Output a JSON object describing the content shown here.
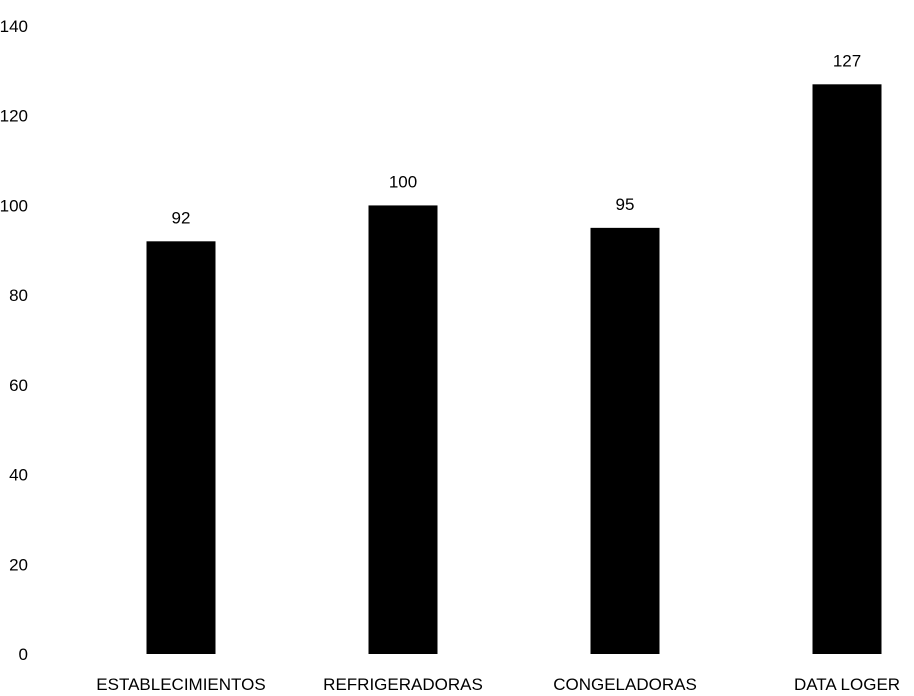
{
  "chart_data": {
    "type": "bar",
    "title": "",
    "xlabel": "",
    "ylabel": "",
    "categories": [
      "ESTABLECIMIENTOS",
      "REFRIGERADORAS",
      "CONGELADORAS",
      "DATA LOGER"
    ],
    "values": [
      92,
      100,
      95,
      127
    ],
    "value_labels": [
      "92",
      "100",
      "95",
      "127"
    ],
    "ylim": [
      0,
      140
    ],
    "yticks": [
      0,
      20,
      40,
      60,
      80,
      100,
      120,
      140
    ],
    "ytick_labels": [
      "0",
      "20",
      "40",
      "60",
      "80",
      "100",
      "120",
      "140"
    ],
    "grid": false,
    "legend": "none",
    "bar_color": "#000000"
  }
}
